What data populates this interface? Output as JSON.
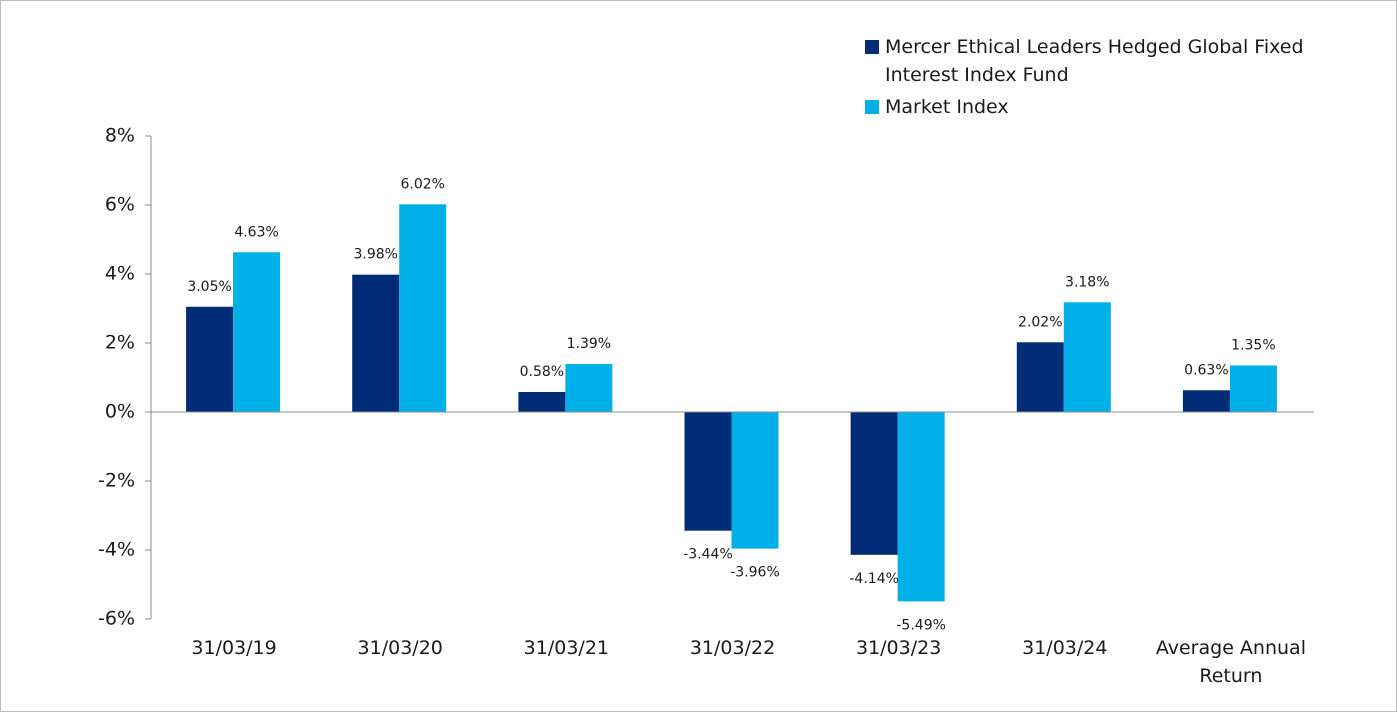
{
  "chart_data": {
    "type": "bar",
    "categories": [
      "31/03/19",
      "31/03/20",
      "31/03/21",
      "31/03/22",
      "31/03/23",
      "31/03/24",
      "Average Annual Return"
    ],
    "series": [
      {
        "name": "Mercer Ethical Leaders Hedged Global Fixed Interest Index Fund",
        "color": "#002c77",
        "values": [
          3.05,
          3.98,
          0.58,
          -3.44,
          -4.14,
          2.02,
          0.63
        ],
        "value_labels": [
          "3.05%",
          "3.98%",
          "0.58%",
          "-3.44%",
          "-4.14%",
          "2.02%",
          "0.63%"
        ]
      },
      {
        "name": "Market Index",
        "color": "#00aee8",
        "values": [
          4.63,
          6.02,
          1.39,
          -3.96,
          -5.49,
          3.18,
          1.35
        ],
        "value_labels": [
          "4.63%",
          "6.02%",
          "1.39%",
          "-3.96%",
          "-5.49%",
          "3.18%",
          "1.35%"
        ]
      }
    ],
    "ylim": [
      -6,
      8
    ],
    "yticks": [
      {
        "value": -6,
        "label": "-6%"
      },
      {
        "value": -4,
        "label": "-4%"
      },
      {
        "value": -2,
        "label": "-2%"
      },
      {
        "value": 0,
        "label": "0%"
      },
      {
        "value": 2,
        "label": "2%"
      },
      {
        "value": 4,
        "label": "4%"
      },
      {
        "value": 6,
        "label": "6%"
      },
      {
        "value": 8,
        "label": "8%"
      }
    ],
    "legend": "top-right"
  }
}
